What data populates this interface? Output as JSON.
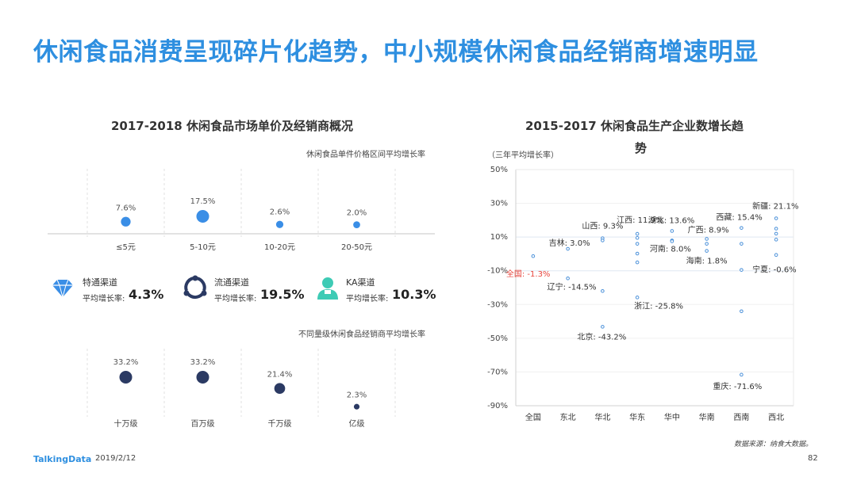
{
  "page": {
    "title": "休闲食品消费呈现碎片化趋势，中小规模休闲食品经销商增速明显",
    "footer_brand": "TalkingData",
    "footer_date": "2019/2/12",
    "page_number": "82",
    "source_note": "数据来源：纳食大数据。"
  },
  "left_panel": {
    "title": "2017-2018  休闲食品市场单价及经销商概况",
    "price_subtitle": "休闲食品单件价格区间平均增长率",
    "dealer_subtitle": "不同量级休闲食品经销商平均增长率",
    "channels": [
      {
        "name": "特通渠道",
        "label": "平均增长率:",
        "value": "4.3%",
        "icon": "diamond-icon"
      },
      {
        "name": "流通渠道",
        "label": "平均增长率:",
        "value": "19.5%",
        "icon": "network-icon"
      },
      {
        "name": "KA渠道",
        "label": "平均增长率:",
        "value": "10.3%",
        "icon": "person-icon"
      }
    ]
  },
  "right_panel": {
    "title_line1": "2015-2017  休闲食品生产企业数增长趋",
    "title_line2": "势",
    "unit_label": "（三年平均增长率）"
  },
  "chart_data": [
    {
      "type": "scatter",
      "categories": [
        "≤5元",
        "5-10元",
        "10-20元",
        "20-50元"
      ],
      "values": [
        7.6,
        17.5,
        2.6,
        2.0
      ],
      "value_labels": [
        "7.6%",
        "17.5%",
        "2.6%",
        "2.0%"
      ],
      "color": "#3a8ee6"
    },
    {
      "type": "scatter",
      "categories": [
        "十万级",
        "百万级",
        "千万级",
        "亿级"
      ],
      "values": [
        33.2,
        33.2,
        21.4,
        2.3
      ],
      "value_labels": [
        "33.2%",
        "33.2%",
        "21.4%",
        "2.3%"
      ],
      "color": "#2b3a63"
    },
    {
      "type": "scatter",
      "categories": [
        "全国",
        "东北",
        "华北",
        "华东",
        "华中",
        "华南",
        "西南",
        "西北"
      ],
      "ylim": [
        -90,
        50
      ],
      "yticks": [
        "50%",
        "30%",
        "10%",
        "-10%",
        "-30%",
        "-50%",
        "-70%",
        "-90%"
      ],
      "point_color": "#4a90d9",
      "highlight_color": "#e8453c",
      "points": [
        {
          "region": "全国",
          "value": -1.3
        },
        {
          "region": "东北",
          "value": 3.0
        },
        {
          "region": "东北",
          "value": -14.5
        },
        {
          "region": "华北",
          "value": 9.3
        },
        {
          "region": "华北",
          "value": 8.0
        },
        {
          "region": "华北",
          "value": -22.0
        },
        {
          "region": "华北",
          "value": -43.2
        },
        {
          "region": "华东",
          "value": 11.9
        },
        {
          "region": "华东",
          "value": 9.5
        },
        {
          "region": "华东",
          "value": 6.0
        },
        {
          "region": "华东",
          "value": 0.2
        },
        {
          "region": "华东",
          "value": -5.0
        },
        {
          "region": "华东",
          "value": -25.8
        },
        {
          "region": "华中",
          "value": 13.6
        },
        {
          "region": "华中",
          "value": 8.0
        },
        {
          "region": "华中",
          "value": 7.5
        },
        {
          "region": "华南",
          "value": 8.9
        },
        {
          "region": "华南",
          "value": 6.0
        },
        {
          "region": "华南",
          "value": 1.8
        },
        {
          "region": "西南",
          "value": 15.4
        },
        {
          "region": "西南",
          "value": 6.0
        },
        {
          "region": "西南",
          "value": -9.5
        },
        {
          "region": "西南",
          "value": -34.0
        },
        {
          "region": "西南",
          "value": -71.6
        },
        {
          "region": "西北",
          "value": 21.1
        },
        {
          "region": "西北",
          "value": 15.0
        },
        {
          "region": "西北",
          "value": 12.0
        },
        {
          "region": "西北",
          "value": 8.5
        },
        {
          "region": "西北",
          "value": -0.6
        }
      ],
      "annotations": [
        {
          "text": "全国: -1.3%",
          "region": "全国",
          "value": -1.3,
          "highlight": true
        },
        {
          "text": "吉林: 3.0%",
          "region": "东北",
          "value": 3.0
        },
        {
          "text": "辽宁: -14.5%",
          "region": "东北",
          "value": -14.5
        },
        {
          "text": "山西: 9.3%",
          "region": "华北",
          "value": 9.3
        },
        {
          "text": "北京: -43.2%",
          "region": "华北",
          "value": -43.2
        },
        {
          "text": "江西: 11.9%",
          "region": "华东",
          "value": 11.9
        },
        {
          "text": "浙江: -25.8%",
          "region": "华东",
          "value": -25.8
        },
        {
          "text": "湖北: 13.6%",
          "region": "华中",
          "value": 13.6
        },
        {
          "text": "河南: 8.0%",
          "region": "华中",
          "value": 8.0
        },
        {
          "text": "广西: 8.9%",
          "region": "华南",
          "value": 8.9
        },
        {
          "text": "海南: 1.8%",
          "region": "华南",
          "value": 1.8
        },
        {
          "text": "西藏: 15.4%",
          "region": "西南",
          "value": 15.4
        },
        {
          "text": "重庆: -71.6%",
          "region": "西南",
          "value": -71.6
        },
        {
          "text": "新疆: 21.1%",
          "region": "西北",
          "value": 21.1
        },
        {
          "text": "宁夏: -0.6%",
          "region": "西北",
          "value": -0.6
        }
      ]
    }
  ]
}
